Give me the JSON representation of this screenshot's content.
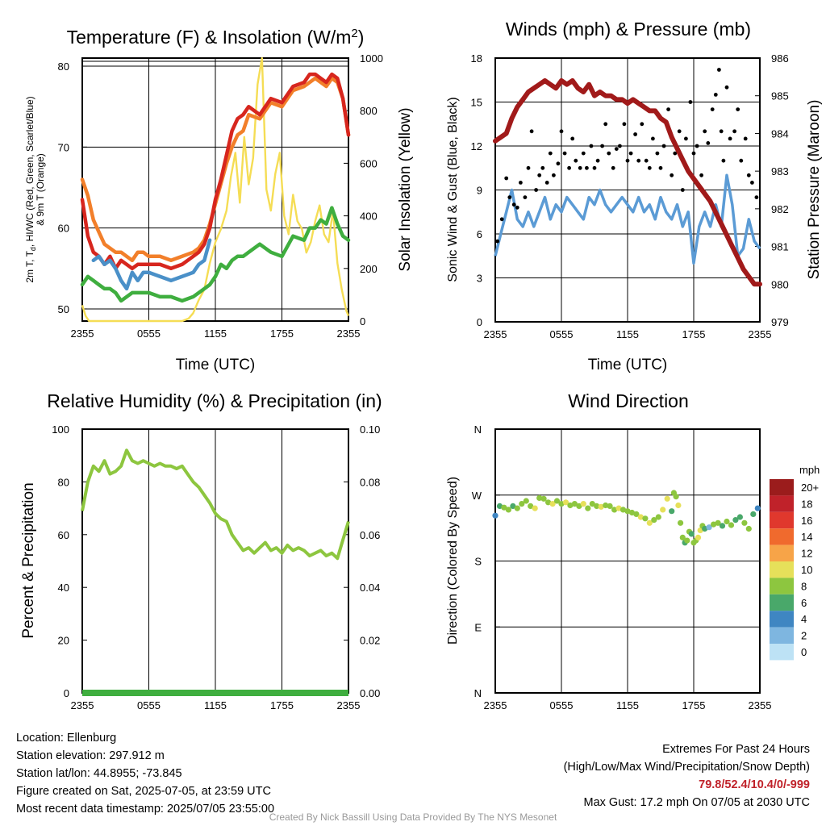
{
  "info": {
    "location": "Location: Ellenburg",
    "elevation": "Station elevation: 297.912 m",
    "latlon": "Station lat/lon: 44.8955; -73.845",
    "created": "Figure created on Sat, 2025-07-05, at 23:59 UTC",
    "recent": "Most recent data timestamp: 2025/07/05 23:55:00",
    "extremes_title": "Extremes For Past 24 Hours",
    "extremes_subtitle": "(High/Low/Max Wind/Precipitation/Snow Depth)",
    "extremes_values": "79.8/52.4/10.4/0/-999",
    "max_gust": "Max Gust: 17.2 mph On 07/05 at 2030 UTC",
    "credit": "Created By Nick Bassill Using Data Provided By The NYS Mesonet"
  },
  "colors": {
    "temp": "#d7261e",
    "dewpoint": "#3fae3f",
    "windchill": "#4a90c8",
    "temp9m": "#f27f2a",
    "solar": "#f5dd55",
    "wind": "#5b9bd5",
    "gust": "#000000",
    "pressure": "#a11a1a",
    "rh": "#8dc63f",
    "precip": "#3fae3f"
  },
  "chart_data": [
    {
      "type": "line",
      "title": "Temperature (F) & Insolation (W/m2)",
      "xlabel": "Time (UTC)",
      "ylabel": "2m T, Td, HI/WC (Red, Green, Scarlet/Blue) & 9m T (Orange)",
      "y2label": "Solar Insolation (Yellow)",
      "xticks": [
        "2355",
        "0555",
        "1155",
        "1755",
        "2355"
      ],
      "ylim": [
        48.5,
        81
      ],
      "yticks": [
        50,
        60,
        70,
        80
      ],
      "y2lim": [
        0,
        1000
      ],
      "y2ticks": [
        0,
        200,
        400,
        600,
        800,
        1000
      ],
      "x_hours": [
        0,
        0.5,
        1,
        1.5,
        2,
        2.5,
        3,
        3.5,
        4,
        4.5,
        5,
        5.5,
        6,
        7,
        8,
        9,
        10,
        10.5,
        11,
        11.5,
        12,
        12.5,
        13,
        13.5,
        14,
        14.5,
        15,
        16,
        17,
        18,
        19,
        20,
        20.5,
        21,
        21.5,
        22,
        22.5,
        23,
        23.5,
        24
      ],
      "series": [
        {
          "name": "2m T",
          "color_key": "temp",
          "values": [
            63.5,
            59,
            57,
            56.5,
            55.5,
            56.5,
            55,
            56,
            55.5,
            55,
            55.5,
            55.5,
            55.5,
            55.5,
            55,
            55.5,
            56.5,
            57,
            58,
            60,
            63.5,
            66,
            69,
            72,
            73.5,
            74,
            75,
            74,
            76,
            75.5,
            77.5,
            78,
            79,
            79,
            78.5,
            78,
            79,
            78.5,
            76,
            71.5
          ]
        },
        {
          "name": "9m T",
          "color_key": "temp9m",
          "values": [
            66,
            64,
            61,
            59.5,
            58,
            57.5,
            57,
            57,
            56.5,
            56,
            57,
            57,
            56.5,
            56.5,
            56,
            56.5,
            57,
            57.5,
            58.5,
            60.5,
            63,
            65.5,
            68,
            70,
            71.5,
            72,
            74,
            73.5,
            75.5,
            75,
            77,
            77.5,
            78,
            78.5,
            78,
            77.5,
            78.5,
            78,
            76,
            71.5
          ]
        },
        {
          "name": "HI/WC",
          "color_key": "windchill",
          "values": [
            null,
            null,
            56,
            56.5,
            55.5,
            56,
            55,
            53.5,
            52.5,
            54.5,
            53.5,
            54.5,
            54.5,
            54,
            53.5,
            54,
            54.5,
            55.5,
            56,
            58.5,
            null,
            null,
            null,
            null,
            null,
            null,
            null,
            null,
            null,
            null,
            null,
            null,
            null,
            null,
            null,
            null,
            null,
            null,
            null,
            null
          ]
        },
        {
          "name": "2m Td",
          "color_key": "dewpoint",
          "values": [
            53,
            54,
            53.5,
            53,
            52.5,
            52.5,
            52,
            51,
            51.5,
            52,
            52,
            52,
            52,
            51.5,
            51.5,
            51,
            51.5,
            52,
            52.5,
            53,
            54,
            55.5,
            55,
            56,
            56.5,
            56.5,
            57,
            58,
            57,
            56.5,
            59,
            58.5,
            60,
            60,
            61,
            60.5,
            62.5,
            60.5,
            59,
            58.5
          ]
        }
      ],
      "solar_x_hours": [
        0,
        0.3,
        0.6,
        1,
        6,
        8,
        9,
        9.6,
        10,
        10.5,
        11,
        11.5,
        12,
        12.5,
        13,
        13.4,
        13.8,
        14.2,
        14.6,
        15,
        15.4,
        15.8,
        16.2,
        16.6,
        17,
        17.4,
        17.8,
        18.2,
        18.6,
        19,
        19.4,
        19.8,
        20.2,
        20.6,
        21,
        21.4,
        21.8,
        22.2,
        22.6,
        23,
        23.4,
        23.8,
        24
      ],
      "solar_values": [
        60,
        20,
        0,
        0,
        0,
        0,
        0,
        10,
        30,
        80,
        120,
        220,
        300,
        350,
        420,
        550,
        640,
        450,
        700,
        520,
        620,
        900,
        1000,
        500,
        420,
        560,
        640,
        400,
        330,
        480,
        380,
        350,
        260,
        300,
        380,
        440,
        330,
        300,
        420,
        220,
        120,
        40,
        20
      ]
    },
    {
      "type": "line",
      "title": "Winds (mph) & Pressure (mb)",
      "xlabel": "Time (UTC)",
      "ylabel": "Sonic Wind & Gust (Blue, Black)",
      "y2label": "Station Pressure (Maroon)",
      "xticks": [
        "2355",
        "0555",
        "1155",
        "1755",
        "2355"
      ],
      "ylim": [
        0,
        18
      ],
      "yticks": [
        0,
        3,
        6,
        9,
        12,
        15,
        18
      ],
      "y2lim": [
        979,
        986
      ],
      "y2ticks": [
        979,
        980,
        981,
        982,
        983,
        984,
        985,
        986
      ],
      "wind_x_hours": [
        0,
        0.5,
        1,
        1.5,
        2,
        2.5,
        3,
        3.5,
        4,
        4.5,
        5,
        5.5,
        6,
        6.5,
        7,
        7.5,
        8,
        8.5,
        9,
        9.5,
        10,
        10.5,
        11,
        11.5,
        12,
        12.5,
        13,
        13.5,
        14,
        14.5,
        15,
        15.5,
        16,
        16.5,
        17,
        17.5,
        18,
        18.5,
        19,
        19.5,
        20,
        20.5,
        21,
        21.5,
        22,
        22.5,
        23,
        23.5,
        24
      ],
      "wind_values": [
        4.5,
        6,
        7.5,
        9,
        7,
        6.5,
        7.5,
        6.5,
        7.5,
        8.5,
        7,
        8,
        7.5,
        8.5,
        8,
        7.5,
        7,
        8.5,
        8,
        9,
        8,
        7.5,
        8,
        8.5,
        8,
        7.5,
        8.5,
        7.5,
        8,
        7,
        8.5,
        7.5,
        7,
        8,
        6.5,
        7.5,
        4,
        6.5,
        7.5,
        6.5,
        8,
        6.5,
        10,
        8,
        4.5,
        5,
        7,
        5.5,
        5
      ],
      "gust_x_hours": [
        0.2,
        0.6,
        1,
        1.3,
        1.7,
        2,
        2.3,
        2.7,
        3,
        3.3,
        3.7,
        4,
        4.3,
        4.7,
        5,
        5.3,
        5.7,
        6,
        6.3,
        6.7,
        7,
        7.3,
        7.7,
        8,
        8.3,
        8.7,
        9,
        9.3,
        9.7,
        10,
        10.3,
        10.7,
        11,
        11.3,
        11.7,
        12,
        12.3,
        12.7,
        13,
        13.3,
        13.7,
        14,
        14.3,
        14.7,
        15,
        15.3,
        15.7,
        16,
        16.3,
        16.7,
        17,
        17.3,
        17.7,
        18,
        18.3,
        18.7,
        19,
        19.3,
        19.7,
        20,
        20.3,
        20.5,
        20.7,
        21,
        21.3,
        21.7,
        22,
        22.3,
        22.7,
        23,
        23.3,
        23.7
      ],
      "gust_values": [
        5.5,
        7,
        9.8,
        8.5,
        8,
        7.8,
        9.5,
        8.5,
        10.5,
        13,
        9,
        10,
        10.5,
        9.5,
        11.5,
        10,
        10.8,
        13,
        11.5,
        10.5,
        12.5,
        11,
        10.5,
        11.5,
        10.5,
        12,
        10.5,
        11,
        12,
        13.5,
        11.5,
        10.5,
        11.8,
        12,
        13.5,
        11,
        11.5,
        12.8,
        11,
        13.5,
        11,
        10.5,
        12.5,
        11.5,
        10.5,
        12,
        14.5,
        10,
        11.5,
        13,
        9,
        12.5,
        15,
        11.5,
        12,
        10,
        13,
        12.2,
        14.5,
        15.5,
        17.2,
        13,
        11,
        16,
        12.5,
        13,
        14.5,
        11,
        12.5,
        10,
        9.5,
        8.5
      ],
      "pressure_x_hours": [
        0,
        0.5,
        1,
        1.5,
        2,
        2.5,
        3,
        3.5,
        4,
        4.5,
        5,
        5.5,
        6,
        6.5,
        7,
        7.5,
        8,
        8.5,
        9,
        9.5,
        10,
        10.5,
        11,
        11.5,
        12,
        12.5,
        13,
        13.5,
        14,
        14.5,
        15,
        15.5,
        16,
        16.5,
        17,
        17.5,
        18,
        18.5,
        19,
        19.5,
        20,
        20.5,
        21,
        21.5,
        22,
        22.5,
        23,
        23.5,
        24
      ],
      "pressure_values": [
        983.8,
        983.9,
        984.0,
        984.4,
        984.7,
        984.9,
        985.1,
        985.2,
        985.3,
        985.4,
        985.3,
        985.2,
        985.4,
        985.3,
        985.4,
        985.2,
        985.1,
        985.3,
        985.0,
        985.1,
        985.0,
        985.0,
        984.9,
        984.9,
        984.8,
        984.9,
        984.8,
        984.7,
        984.6,
        984.6,
        984.4,
        984.3,
        983.9,
        983.6,
        983.3,
        983.0,
        982.8,
        982.6,
        982.4,
        982.2,
        981.9,
        981.6,
        981.3,
        981.0,
        980.7,
        980.4,
        980.2,
        980.0,
        980.0
      ]
    },
    {
      "type": "line",
      "title": "Relative Humidity (%) & Precipitation (in)",
      "ylabel": "Percent & Precipitation",
      "xticks": [
        "2355",
        "0555",
        "1155",
        "1755",
        "2355"
      ],
      "ylim": [
        0,
        100
      ],
      "yticks": [
        0,
        20,
        40,
        60,
        80,
        100
      ],
      "y2lim": [
        0,
        0.1
      ],
      "y2ticks": [
        "0.00",
        "0.02",
        "0.04",
        "0.06",
        "0.08",
        "0.10"
      ],
      "x_hours": [
        0,
        0.5,
        1,
        1.5,
        2,
        2.5,
        3,
        3.5,
        4,
        4.5,
        5,
        5.5,
        6,
        6.5,
        7,
        7.5,
        8,
        8.5,
        9,
        9.5,
        10,
        10.5,
        11,
        11.5,
        12,
        12.5,
        13,
        13.5,
        14,
        14.5,
        15,
        15.5,
        16,
        16.5,
        17,
        17.5,
        18,
        18.5,
        19,
        19.5,
        20,
        20.5,
        21,
        21.5,
        22,
        22.5,
        23,
        23.5,
        24
      ],
      "rh_values": [
        69,
        80,
        86,
        84,
        88,
        83,
        84,
        86,
        92,
        88,
        87,
        88,
        87,
        86,
        87,
        86,
        86,
        85,
        86,
        83,
        80,
        78,
        75,
        72,
        68,
        66,
        65,
        60,
        57,
        54,
        55,
        53,
        55,
        57,
        54,
        55,
        53,
        56,
        54,
        55,
        54,
        52,
        53,
        54,
        52,
        53,
        51,
        58,
        65
      ],
      "precip_values": [
        0,
        0,
        0,
        0,
        0,
        0,
        0,
        0,
        0,
        0,
        0,
        0,
        0,
        0,
        0,
        0,
        0,
        0,
        0,
        0,
        0,
        0,
        0,
        0,
        0,
        0,
        0,
        0,
        0,
        0,
        0,
        0,
        0,
        0,
        0,
        0,
        0,
        0,
        0,
        0,
        0,
        0,
        0,
        0,
        0,
        0,
        0,
        0,
        0
      ]
    },
    {
      "type": "scatter",
      "title": "Wind Direction",
      "ylabel": "Direction (Colored By Speed)",
      "xticks": [
        "2355",
        "0555",
        "1155",
        "1755",
        "2355"
      ],
      "yticks": [
        "N",
        "E",
        "S",
        "W",
        "N"
      ],
      "ylim": [
        0,
        360
      ],
      "legend_title": "mph",
      "legend_labels": [
        "20+",
        "18",
        "16",
        "14",
        "12",
        "10",
        "8",
        "6",
        "4",
        "2",
        "0"
      ],
      "legend_colors": [
        "#9b1c1c",
        "#c0222a",
        "#e0382d",
        "#f06a2d",
        "#f7a448",
        "#e6e05a",
        "#8dc63f",
        "#49a86a",
        "#3f86c2",
        "#7eb6e0",
        "#bde2f5"
      ],
      "x_hours": [
        0,
        0.4,
        0.8,
        1.2,
        1.6,
        2,
        2.4,
        2.8,
        3.2,
        3.6,
        4,
        4.4,
        4.8,
        5.2,
        5.6,
        6,
        6.4,
        6.8,
        7.2,
        7.6,
        8,
        8.4,
        8.8,
        9.2,
        9.6,
        10,
        10.4,
        10.8,
        11.2,
        11.6,
        12,
        12.4,
        12.8,
        13.2,
        13.6,
        14,
        14.4,
        14.8,
        15.2,
        15.6,
        16,
        16.2,
        16.4,
        16.6,
        16.8,
        17,
        17.2,
        17.4,
        17.6,
        17.8,
        18,
        18.2,
        18.4,
        18.6,
        18.8,
        19,
        19.4,
        19.8,
        20.2,
        20.6,
        21,
        21.4,
        21.8,
        22.2,
        22.6,
        23,
        23.4,
        23.8
      ],
      "direction_deg": [
        242,
        255,
        253,
        250,
        255,
        252,
        258,
        262,
        255,
        252,
        266,
        265,
        260,
        258,
        262,
        258,
        260,
        256,
        258,
        255,
        258,
        252,
        258,
        255,
        254,
        256,
        255,
        250,
        252,
        250,
        248,
        246,
        244,
        240,
        238,
        232,
        236,
        240,
        250,
        265,
        248,
        273,
        268,
        256,
        232,
        212,
        205,
        208,
        220,
        217,
        205,
        208,
        212,
        222,
        228,
        224,
        226,
        230,
        232,
        228,
        234,
        229,
        236,
        240,
        232,
        224,
        244,
        252
      ],
      "speed_mph": [
        4,
        6,
        7,
        8,
        6,
        7,
        8,
        7,
        8,
        9,
        8,
        7,
        8,
        9,
        8,
        7,
        9,
        8,
        7,
        8,
        10,
        8,
        7,
        8,
        9,
        8,
        7,
        8,
        9,
        8,
        7,
        8,
        7,
        9,
        8,
        10,
        8,
        7,
        10,
        9,
        6,
        8,
        7,
        9,
        8,
        7,
        6,
        8,
        7,
        6,
        8,
        7,
        10,
        9,
        7,
        6,
        2,
        8,
        7,
        6,
        8,
        7,
        6,
        5,
        8,
        7,
        6,
        4
      ]
    }
  ]
}
